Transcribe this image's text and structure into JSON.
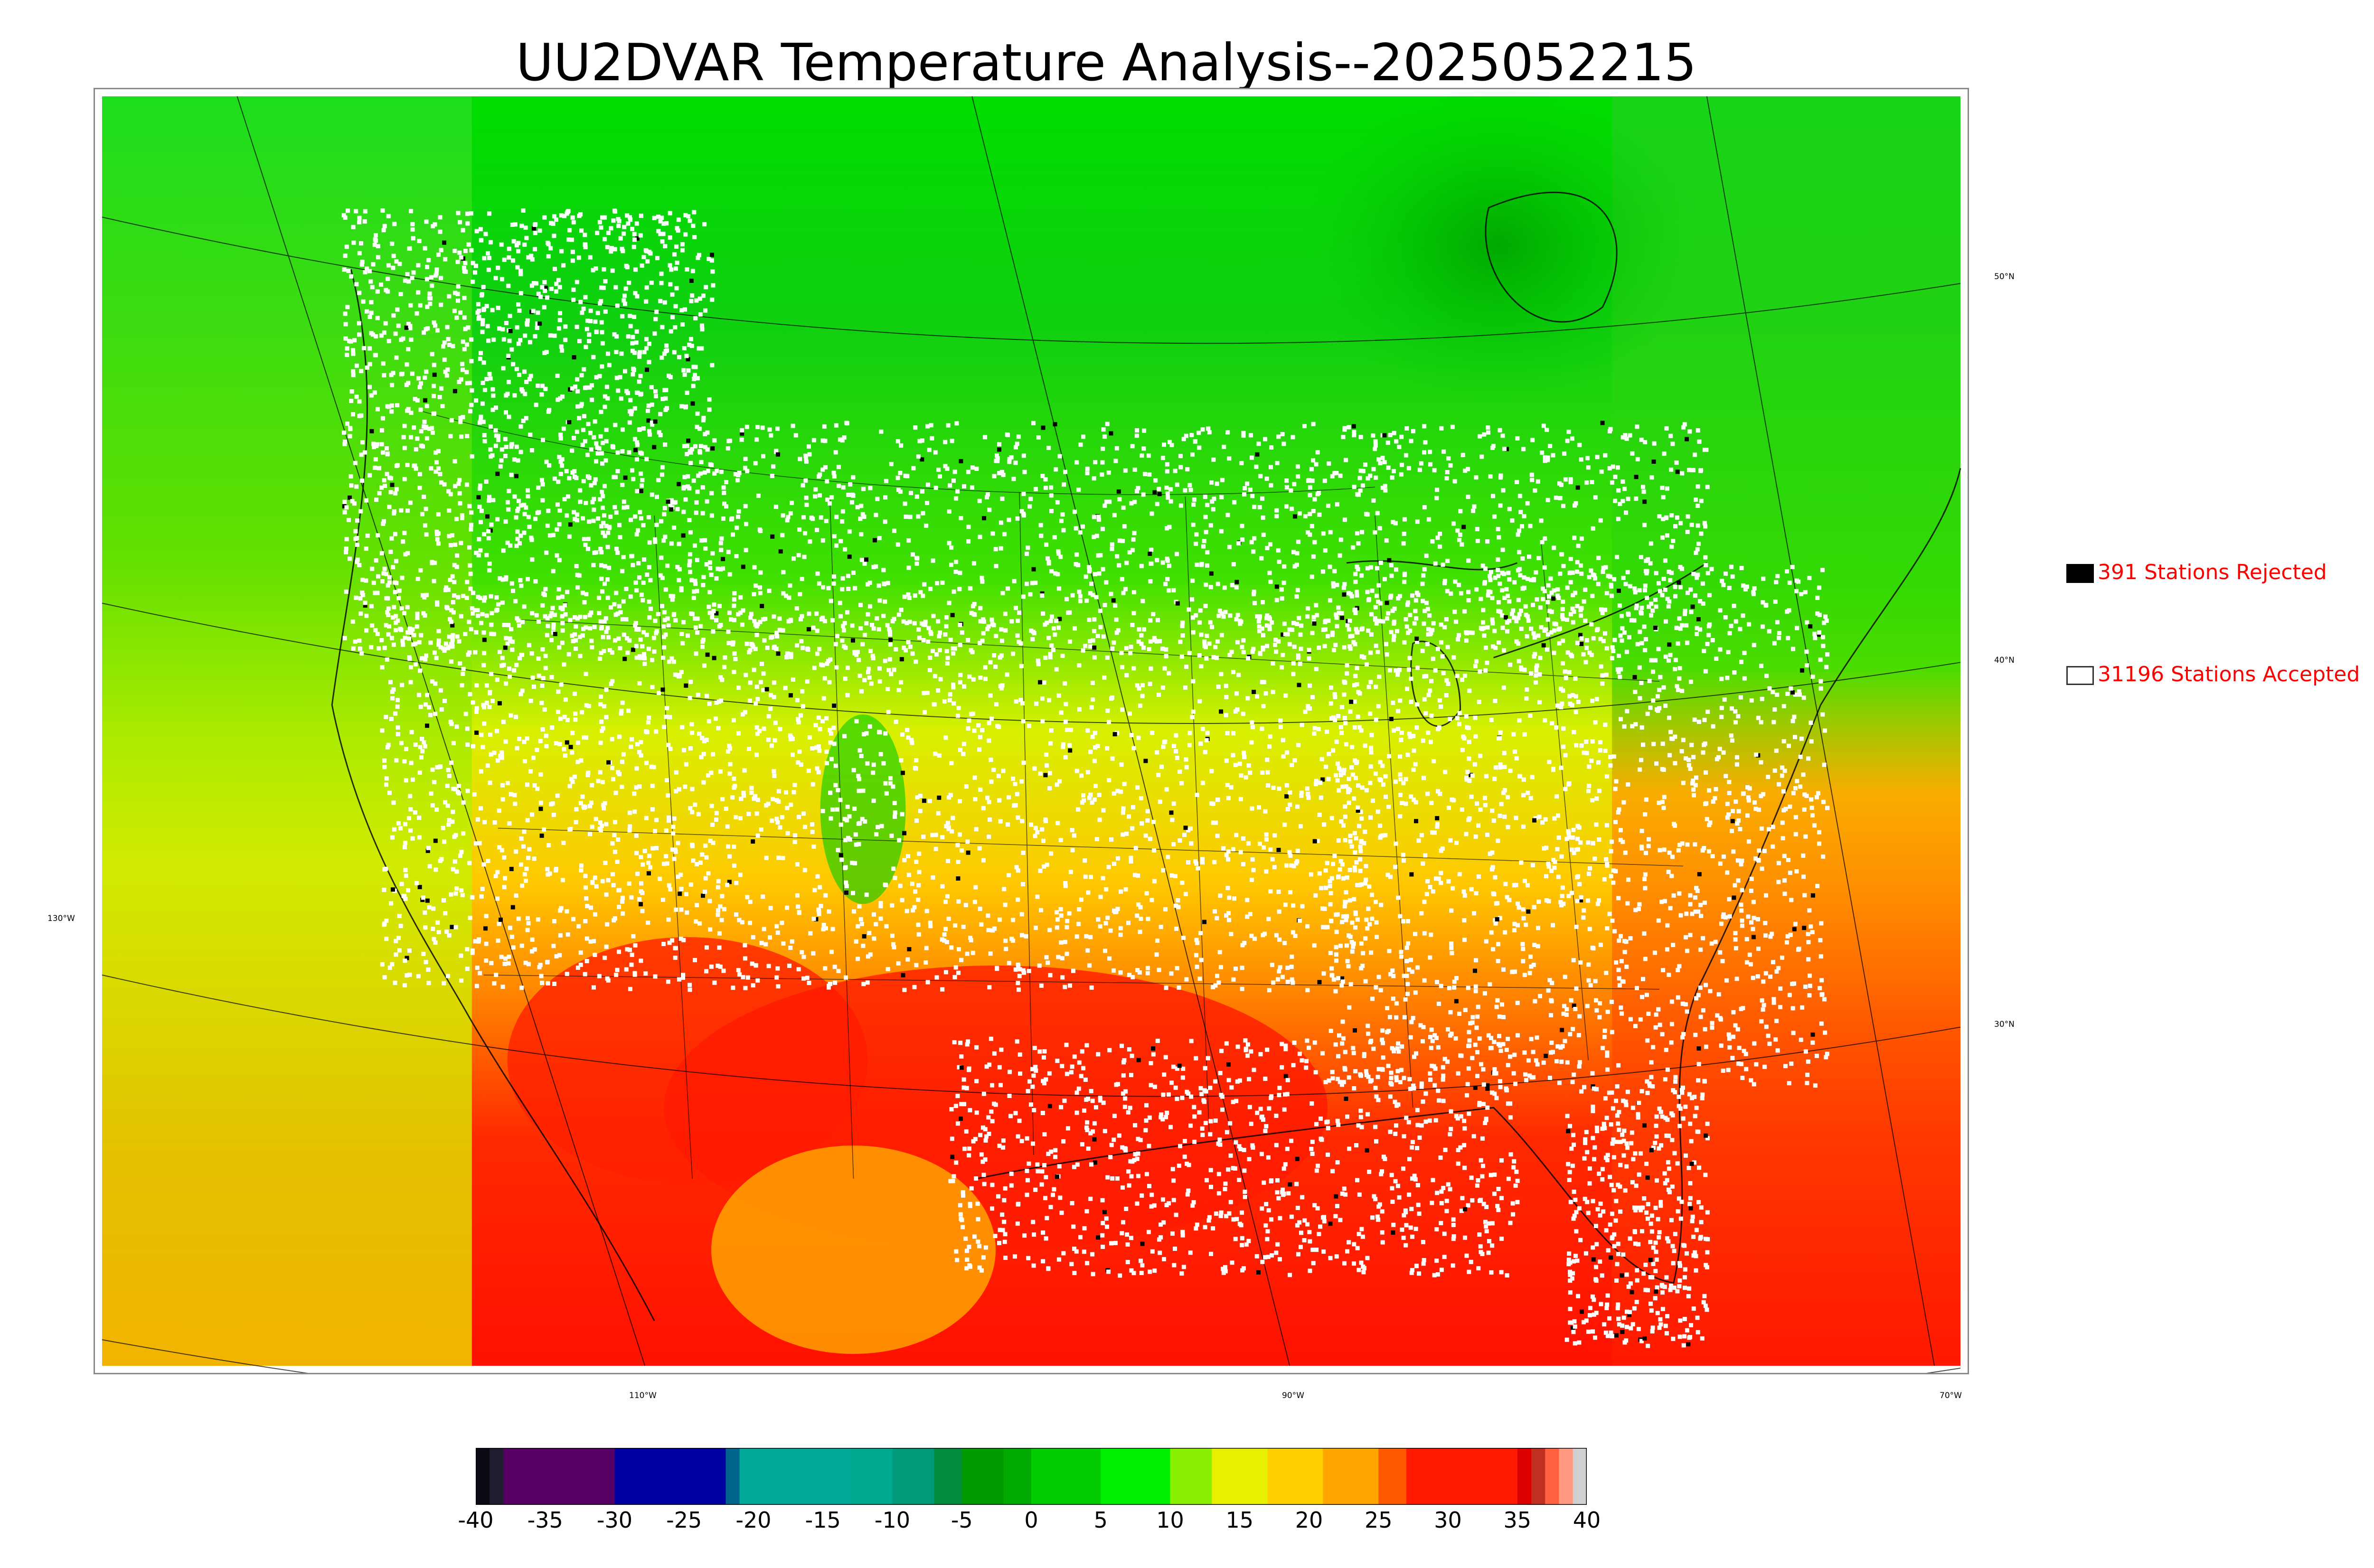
{
  "title": "UU2DVAR Temperature Analysis--2025052215",
  "legend": {
    "rejected": {
      "label": "391 Stations Rejected",
      "swatch_color": "#000000",
      "label_color": "#ff0000"
    },
    "accepted": {
      "label": "31196 Stations Accepted",
      "swatch_color": "#ffffff",
      "label_color": "#ff0000"
    }
  },
  "latitude_labels": [
    "50°N",
    "40°N",
    "30°N"
  ],
  "longitude_labels": [
    "130°W",
    "110°W",
    "90°W",
    "70°W"
  ],
  "colorbar": {
    "ticks": [
      "-40",
      "-35",
      "-30",
      "-25",
      "-20",
      "-15",
      "-10",
      "-5",
      "0",
      "5",
      "10",
      "15",
      "20",
      "25",
      "30",
      "35",
      "40"
    ],
    "range": [
      -40,
      40
    ],
    "segments": [
      {
        "from": -40,
        "to": -39,
        "color": "#0a0a14"
      },
      {
        "from": -39,
        "to": -38,
        "color": "#1e1e30"
      },
      {
        "from": -38,
        "to": -30,
        "color": "#560064"
      },
      {
        "from": -30,
        "to": -22,
        "color": "#0000a0"
      },
      {
        "from": -22,
        "to": -21,
        "color": "#00648c"
      },
      {
        "from": -21,
        "to": -13,
        "color": "#00aa99"
      },
      {
        "from": -13,
        "to": -10,
        "color": "#00a890"
      },
      {
        "from": -10,
        "to": -7,
        "color": "#009a7a"
      },
      {
        "from": -7,
        "to": -5,
        "color": "#008c3c"
      },
      {
        "from": -5,
        "to": -2,
        "color": "#009900"
      },
      {
        "from": -2,
        "to": 0,
        "color": "#00aa00"
      },
      {
        "from": 0,
        "to": 5,
        "color": "#00cc00"
      },
      {
        "from": 5,
        "to": 10,
        "color": "#00ee00"
      },
      {
        "from": 10,
        "to": 13,
        "color": "#88f000"
      },
      {
        "from": 13,
        "to": 17,
        "color": "#e6f000"
      },
      {
        "from": 17,
        "to": 21,
        "color": "#ffd000"
      },
      {
        "from": 21,
        "to": 25,
        "color": "#ffa500"
      },
      {
        "from": 25,
        "to": 27,
        "color": "#ff5a00"
      },
      {
        "from": 27,
        "to": 35,
        "color": "#ff1a00"
      },
      {
        "from": 35,
        "to": 36,
        "color": "#dd0000"
      },
      {
        "from": 36,
        "to": 37,
        "color": "#c03020"
      },
      {
        "from": 37,
        "to": 38,
        "color": "#ff6040"
      },
      {
        "from": 38,
        "to": 39,
        "color": "#ff9a80"
      },
      {
        "from": 39,
        "to": 40,
        "color": "#d0d0d0"
      }
    ]
  }
}
